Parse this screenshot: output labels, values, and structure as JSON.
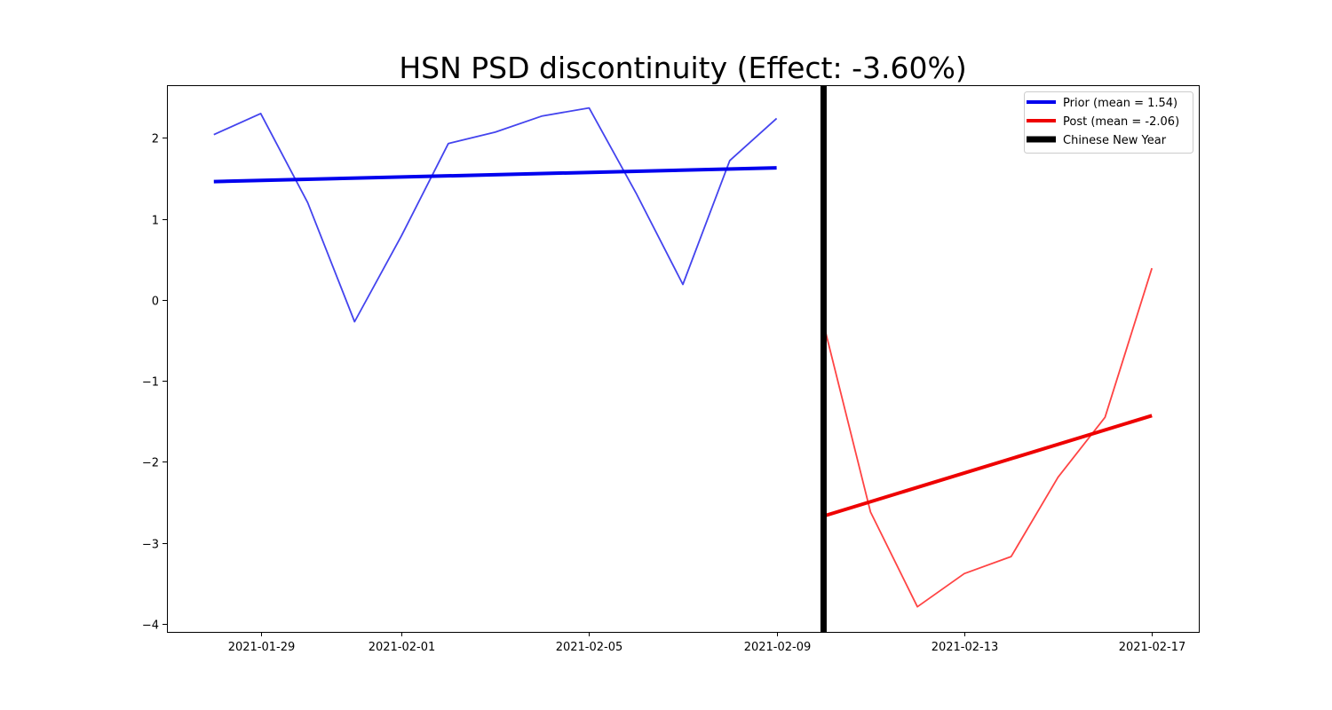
{
  "chart_data": {
    "type": "line",
    "title": "HSN PSD discontinuity (Effect: -3.60%)",
    "xlabel": "",
    "ylabel": "",
    "x_axis": {
      "type": "date",
      "range": [
        "2021-01-27",
        "2021-02-18"
      ],
      "ticks": [
        "2021-01-29",
        "2021-02-01",
        "2021-02-05",
        "2021-02-09",
        "2021-02-13",
        "2021-02-17"
      ]
    },
    "ylim": [
      -4.1,
      2.65
    ],
    "yticks": [
      -4,
      -3,
      -2,
      -1,
      0,
      1,
      2
    ],
    "grid": false,
    "legend_position": "upper right",
    "series": [
      {
        "kind": "raw",
        "color": "#4444ee",
        "points": [
          [
            "2021-01-28",
            2.04
          ],
          [
            "2021-01-29",
            2.3
          ],
          [
            "2021-01-30",
            1.2
          ],
          [
            "2021-01-31",
            -0.27
          ],
          [
            "2021-02-01",
            0.79
          ],
          [
            "2021-02-02",
            1.93
          ],
          [
            "2021-02-03",
            2.07
          ],
          [
            "2021-02-04",
            2.27
          ],
          [
            "2021-02-05",
            2.37
          ],
          [
            "2021-02-06",
            1.32
          ],
          [
            "2021-02-07",
            0.19
          ],
          [
            "2021-02-08",
            1.72
          ],
          [
            "2021-02-09",
            2.24
          ]
        ]
      },
      {
        "kind": "raw",
        "color": "#ff4444",
        "points": [
          [
            "2021-02-10",
            -0.3
          ],
          [
            "2021-02-11",
            -2.62
          ],
          [
            "2021-02-12",
            -3.79
          ],
          [
            "2021-02-13",
            -3.38
          ],
          [
            "2021-02-14",
            -3.17
          ],
          [
            "2021-02-15",
            -2.19
          ],
          [
            "2021-02-16",
            -1.45
          ],
          [
            "2021-02-17",
            0.39
          ]
        ]
      },
      {
        "kind": "fit",
        "name": "Prior (mean = 1.54)",
        "color": "#0000ee",
        "points": [
          [
            "2021-01-28",
            1.46
          ],
          [
            "2021-02-09",
            1.63
          ]
        ]
      },
      {
        "kind": "fit",
        "name": "Post (mean = -2.06)",
        "color": "#ee0000",
        "points": [
          [
            "2021-02-10",
            -2.67
          ],
          [
            "2021-02-17",
            -1.43
          ]
        ]
      }
    ],
    "vertical_lines": [
      {
        "name": "Chinese New Year",
        "x": "2021-02-10",
        "color": "#000000"
      }
    ],
    "legend": [
      {
        "label": "Prior (mean = 1.54)",
        "color": "#0000ee"
      },
      {
        "label": "Post (mean = -2.06)",
        "color": "#ee0000"
      },
      {
        "label": "Chinese New Year",
        "color": "#000000"
      }
    ]
  }
}
